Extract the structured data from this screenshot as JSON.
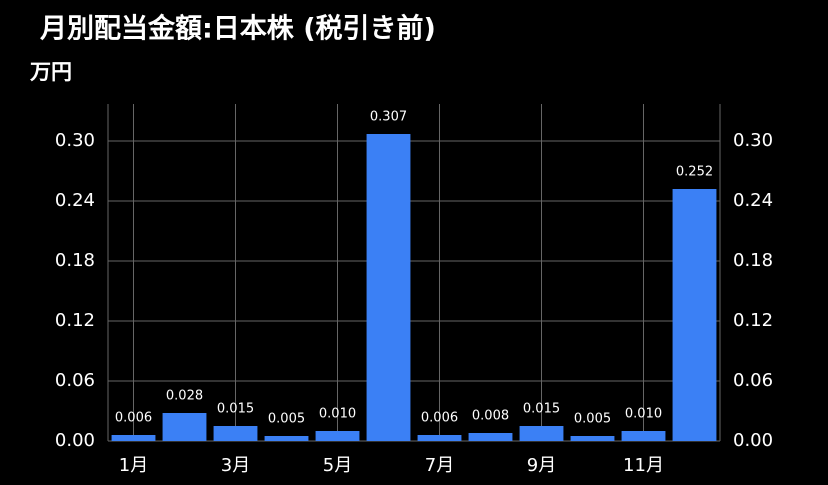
{
  "chart_data": {
    "type": "bar",
    "title": "月別配当金額:日本株 (税引き前)",
    "y_label": "万円",
    "categories": [
      "1月",
      null,
      "3月",
      null,
      "5月",
      null,
      "7月",
      null,
      "9月",
      null,
      "11月",
      null
    ],
    "values": [
      0.006,
      0.028,
      0.015,
      0.005,
      0.01,
      0.307,
      0.006,
      0.008,
      0.015,
      0.005,
      0.01,
      0.252
    ],
    "value_labels": [
      "0.006",
      "0.028",
      "0.015",
      "0.005",
      "0.010",
      "0.307",
      "0.006",
      "0.008",
      "0.015",
      "0.005",
      "0.010",
      "0.252"
    ],
    "color": "#3b80f5",
    "ylim": [
      0,
      0.337
    ],
    "yticks": [
      {
        "value": 0,
        "label": "0.00"
      },
      {
        "value": 0.06,
        "label": "0.06"
      },
      {
        "value": 0.12,
        "label": "0.12"
      },
      {
        "value": 0.18,
        "label": "0.18"
      },
      {
        "value": 0.24,
        "label": "0.24"
      },
      {
        "value": 0.3,
        "label": "0.30"
      }
    ],
    "y2lim": [
      0,
      0.337
    ],
    "y2ticks": [
      {
        "value": 0,
        "label": "0.00"
      },
      {
        "value": 0.06,
        "label": "0.06"
      },
      {
        "value": 0.12,
        "label": "0.12"
      },
      {
        "value": 0.18,
        "label": "0.18"
      },
      {
        "value": 0.24,
        "label": "0.24"
      },
      {
        "value": 0.3,
        "label": "0.30"
      }
    ],
    "grid": true
  }
}
